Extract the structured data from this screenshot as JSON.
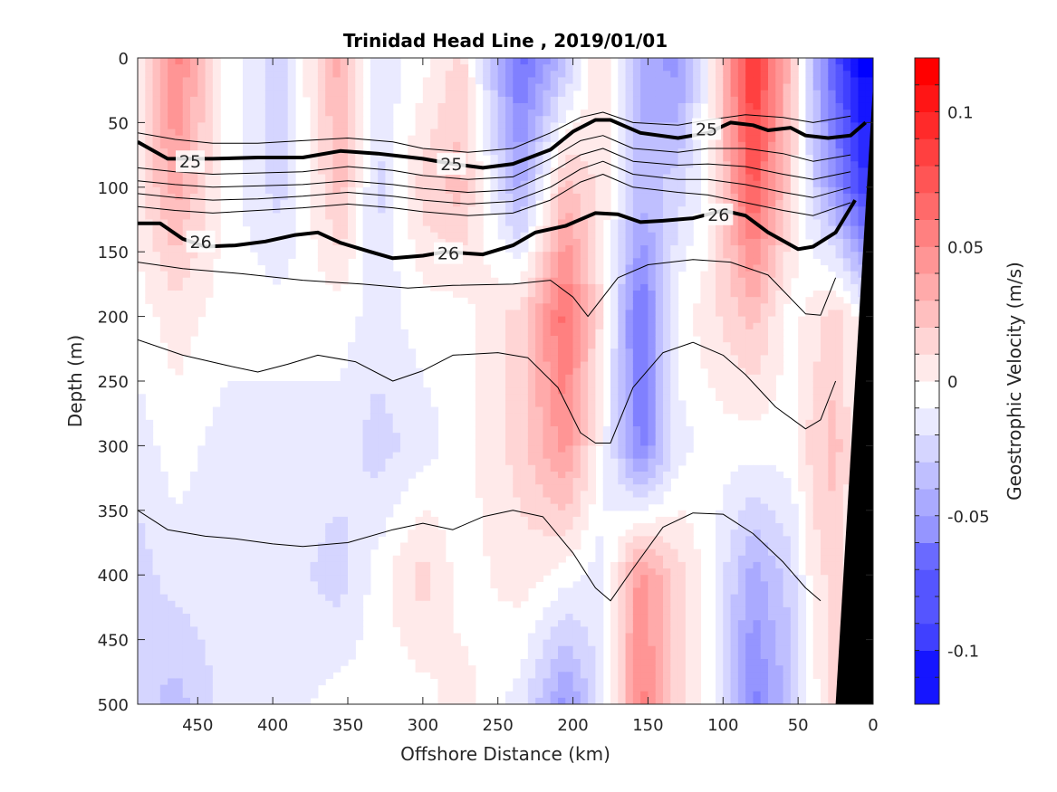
{
  "chart_data": {
    "type": "heatmap",
    "title": "Trinidad Head Line , 2019/01/01",
    "xlabel": "Offshore Distance (km)",
    "ylabel": "Depth (m)",
    "colorbar_label": "Geostrophic Velocity (m/s)",
    "xlim": [
      490,
      0
    ],
    "ylim": [
      0,
      500
    ],
    "x_reversed": true,
    "y_reversed": true,
    "clim": [
      -0.12,
      0.12
    ],
    "colormap": "blue-white-red",
    "xticks": [
      "450",
      "400",
      "350",
      "300",
      "250",
      "200",
      "150",
      "100",
      "50",
      "0"
    ],
    "yticks": [
      "0",
      "50",
      "100",
      "150",
      "200",
      "250",
      "300",
      "350",
      "400",
      "450",
      "500"
    ],
    "cticks": [
      "0.1",
      "0.05",
      "0",
      "-0.05",
      "-0.1"
    ],
    "cbar_levels": [
      -0.12,
      -0.11,
      -0.1,
      -0.09,
      -0.08,
      -0.07,
      -0.06,
      -0.05,
      -0.04,
      -0.03,
      -0.02,
      -0.01,
      0,
      0.01,
      0.02,
      0.03,
      0.04,
      0.05,
      0.06,
      0.07,
      0.08,
      0.09,
      0.1,
      0.11,
      0.12
    ],
    "velocity_columns": [
      {
        "x": 490,
        "v": [
          0.01,
          0.01,
          0.0,
          -0.01,
          -0.02,
          -0.02
        ]
      },
      {
        "x": 465,
        "v": [
          0.06,
          0.04,
          0.01,
          0.0,
          -0.01,
          -0.03
        ]
      },
      {
        "x": 430,
        "v": [
          0.0,
          0.0,
          0.0,
          -0.01,
          -0.01,
          -0.01
        ]
      },
      {
        "x": 395,
        "v": [
          -0.02,
          -0.02,
          0.0,
          -0.01,
          -0.01,
          -0.01
        ]
      },
      {
        "x": 355,
        "v": [
          0.04,
          0.03,
          0.0,
          -0.01,
          -0.02,
          0.0
        ]
      },
      {
        "x": 330,
        "v": [
          -0.01,
          -0.02,
          -0.01,
          -0.02,
          0.0,
          0.0
        ]
      },
      {
        "x": 300,
        "v": [
          0.0,
          0.02,
          0.0,
          -0.01,
          0.02,
          0.0
        ]
      },
      {
        "x": 275,
        "v": [
          0.02,
          0.03,
          0.0,
          0.0,
          0.0,
          0.01
        ]
      },
      {
        "x": 235,
        "v": [
          -0.07,
          -0.04,
          0.02,
          0.02,
          0.01,
          -0.01
        ]
      },
      {
        "x": 205,
        "v": [
          -0.03,
          0.03,
          0.07,
          0.05,
          0.0,
          -0.05
        ]
      },
      {
        "x": 180,
        "v": [
          0.02,
          0.01,
          0.01,
          0.0,
          -0.01,
          -0.01
        ]
      },
      {
        "x": 155,
        "v": [
          -0.04,
          -0.03,
          -0.07,
          -0.06,
          0.05,
          0.06
        ]
      },
      {
        "x": 130,
        "v": [
          -0.05,
          -0.02,
          0.0,
          -0.01,
          0.02,
          0.02
        ]
      },
      {
        "x": 110,
        "v": [
          0.0,
          0.0,
          0.01,
          0.0,
          0.0,
          0.0
        ]
      },
      {
        "x": 80,
        "v": [
          0.1,
          0.08,
          0.03,
          0.0,
          -0.04,
          -0.06
        ]
      },
      {
        "x": 55,
        "v": [
          0.03,
          0.02,
          0.0,
          0.0,
          -0.02,
          -0.03
        ]
      },
      {
        "x": 40,
        "v": [
          -0.03,
          -0.02,
          0.01,
          0.02,
          0.01,
          0.0
        ]
      },
      {
        "x": 25,
        "v": [
          -0.08,
          -0.05,
          0.02,
          0.03,
          0.02,
          0.02
        ]
      },
      {
        "x": 8,
        "v": [
          -0.12,
          -0.09,
          0.0,
          0.0,
          0.0,
          0.0
        ]
      }
    ],
    "velocity_depths": [
      0,
      100,
      200,
      300,
      400,
      500
    ],
    "isopycnals": [
      {
        "label": "25",
        "bold": true,
        "x": [
          490,
          470,
          440,
          410,
          380,
          355,
          330,
          300,
          280,
          260,
          240,
          215,
          200,
          185,
          175,
          155,
          130,
          110,
          95,
          80,
          70,
          55,
          45,
          30,
          15,
          5
        ],
        "y": [
          65,
          78,
          78,
          77,
          77,
          72,
          74,
          78,
          82,
          85,
          82,
          71,
          57,
          48,
          48,
          58,
          62,
          58,
          50,
          52,
          56,
          54,
          60,
          62,
          60,
          50
        ]
      },
      {
        "label": "26",
        "bold": true,
        "x": [
          490,
          475,
          460,
          445,
          425,
          405,
          385,
          370,
          355,
          335,
          320,
          300,
          285,
          260,
          240,
          225,
          205,
          185,
          170,
          155,
          140,
          120,
          100,
          85,
          70,
          50,
          40,
          25,
          12
        ],
        "y": [
          128,
          128,
          140,
          146,
          145,
          142,
          137,
          135,
          143,
          150,
          155,
          153,
          150,
          152,
          145,
          135,
          130,
          120,
          121,
          127,
          126,
          124,
          118,
          122,
          135,
          148,
          146,
          135,
          110
        ]
      },
      {
        "x": [
          490,
          465,
          440,
          410,
          380,
          350,
          320,
          300,
          270,
          240,
          215,
          195,
          180,
          160,
          130,
          110,
          85,
          60,
          40,
          15
        ],
        "y": [
          58,
          63,
          66,
          66,
          64,
          62,
          65,
          70,
          73,
          70,
          58,
          46,
          42,
          50,
          52,
          48,
          44,
          46,
          50,
          45
        ]
      },
      {
        "x": [
          490,
          465,
          440,
          410,
          380,
          350,
          320,
          300,
          270,
          240,
          215,
          195,
          180,
          160,
          130,
          110,
          85,
          60,
          40,
          15
        ],
        "y": [
          85,
          88,
          90,
          89,
          88,
          84,
          87,
          91,
          94,
          92,
          78,
          64,
          60,
          70,
          73,
          70,
          70,
          74,
          80,
          75
        ]
      },
      {
        "x": [
          490,
          465,
          440,
          410,
          380,
          350,
          320,
          300,
          270,
          240,
          215,
          195,
          180,
          160,
          130,
          110,
          85,
          60,
          40,
          15
        ],
        "y": [
          95,
          98,
          100,
          99,
          98,
          95,
          98,
          101,
          104,
          102,
          89,
          75,
          70,
          80,
          83,
          82,
          84,
          90,
          94,
          88
        ]
      },
      {
        "x": [
          490,
          465,
          440,
          410,
          380,
          350,
          320,
          300,
          270,
          240,
          215,
          195,
          180,
          160,
          130,
          110,
          85,
          60,
          40,
          15
        ],
        "y": [
          105,
          108,
          110,
          109,
          107,
          104,
          107,
          110,
          113,
          111,
          100,
          86,
          80,
          90,
          94,
          94,
          98,
          104,
          108,
          100
        ]
      },
      {
        "x": [
          490,
          465,
          440,
          410,
          380,
          350,
          320,
          300,
          270,
          240,
          215,
          195,
          180,
          160,
          130,
          110,
          85,
          60,
          40,
          15
        ],
        "y": [
          115,
          118,
          120,
          118,
          116,
          113,
          116,
          119,
          122,
          120,
          110,
          96,
          90,
          100,
          104,
          106,
          112,
          118,
          122,
          112
        ]
      },
      {
        "x": [
          490,
          460,
          420,
          380,
          340,
          310,
          280,
          240,
          215,
          200,
          190,
          170,
          150,
          120,
          95,
          70,
          45,
          35,
          25
        ],
        "y": [
          158,
          163,
          167,
          172,
          175,
          178,
          176,
          175,
          172,
          185,
          200,
          170,
          160,
          156,
          158,
          168,
          198,
          199,
          170
        ]
      },
      {
        "x": [
          490,
          460,
          430,
          410,
          390,
          370,
          345,
          320,
          300,
          280,
          250,
          230,
          210,
          195,
          185,
          175,
          160,
          140,
          120,
          100,
          85,
          65,
          45,
          35,
          25
        ],
        "y": [
          218,
          230,
          238,
          243,
          237,
          230,
          235,
          250,
          242,
          230,
          228,
          232,
          255,
          290,
          298,
          298,
          255,
          228,
          220,
          230,
          245,
          270,
          287,
          280,
          250
        ]
      },
      {
        "x": [
          490,
          470,
          445,
          425,
          400,
          380,
          350,
          320,
          300,
          280,
          260,
          240,
          220,
          200,
          185,
          175,
          160,
          140,
          120,
          100,
          80,
          60,
          45,
          35
        ],
        "y": [
          350,
          365,
          370,
          372,
          376,
          378,
          375,
          365,
          360,
          365,
          355,
          350,
          355,
          383,
          410,
          420,
          395,
          363,
          352,
          353,
          368,
          390,
          410,
          420
        ]
      }
    ],
    "labels": [
      {
        "text": "25",
        "x": 455,
        "y": 80
      },
      {
        "text": "25",
        "x": 281,
        "y": 82
      },
      {
        "text": "25",
        "x": 111,
        "y": 55
      },
      {
        "text": "26",
        "x": 448,
        "y": 142
      },
      {
        "text": "26",
        "x": 283,
        "y": 151
      },
      {
        "text": "26",
        "x": 103,
        "y": 121
      }
    ],
    "bathymetry": {
      "x": [
        25,
        0,
        0
      ],
      "y": [
        500,
        20,
        500
      ]
    }
  }
}
